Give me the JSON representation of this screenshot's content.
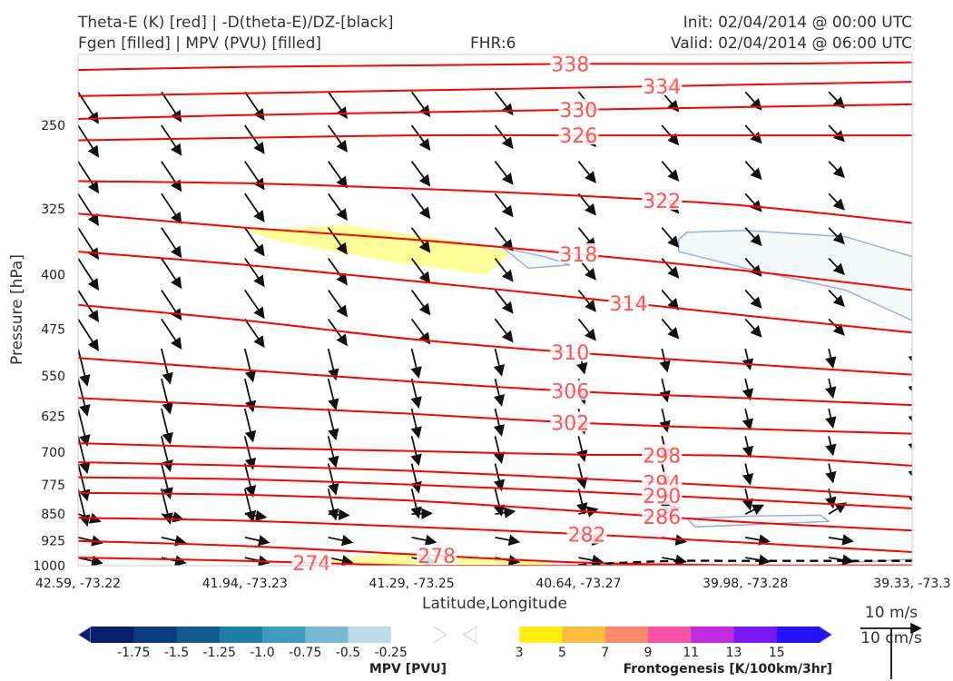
{
  "header": {
    "title_left_1": "Theta-E (K) [red] | -D(theta-E)/DZ-[black]",
    "title_left_2": "Fgen [filled] | MPV (PVU) [filled]",
    "title_center": "FHR:6",
    "title_right_1": "Init: 02/04/2014 @ 00:00 UTC",
    "title_right_2": "Valid: 02/04/2014 @ 06:00 UTC"
  },
  "chart_data": {
    "type": "cross-section",
    "xlabel": "Latitude,Longitude",
    "ylabel": "Pressure [hPa]",
    "x_ticks": [
      "42.59, -73.22",
      "41.94, -73.23",
      "41.29, -73.25",
      "40.64, -73.27",
      "39.98, -73.28",
      "39.33, -73.3"
    ],
    "y_ticks": [
      250,
      325,
      400,
      475,
      550,
      625,
      700,
      775,
      850,
      925,
      1000
    ],
    "ylim": [
      1000,
      200
    ],
    "y_scale": "log",
    "theta_e_contours": {
      "color": "#ff0000",
      "x_points": [
        0,
        1,
        2,
        3,
        4,
        5
      ],
      "lines": [
        {
          "value": 338,
          "label": "338",
          "p": [
            210,
            208,
            207,
            206,
            206,
            205
          ]
        },
        {
          "value": 334,
          "label": "334",
          "p": [
            228,
            226,
            224,
            222,
            220,
            218
          ]
        },
        {
          "value": 330,
          "label": "330",
          "p": [
            245,
            242,
            240,
            238,
            236,
            234
          ]
        },
        {
          "value": 326,
          "label": "326",
          "p": [
            262,
            260,
            258,
            258,
            258,
            258
          ]
        },
        {
          "value": 322,
          "label": "322",
          "p": [
            298,
            300,
            305,
            312,
            322,
            340
          ]
        },
        {
          "value": 318,
          "label": "318",
          "p": [
            330,
            345,
            358,
            375,
            395,
            420
          ]
        },
        {
          "value": 314,
          "label": "314",
          "p": [
            372,
            388,
            408,
            430,
            455,
            480
          ]
        },
        {
          "value": 310,
          "label": "310",
          "p": [
            440,
            462,
            490,
            512,
            530,
            548
          ]
        },
        {
          "value": 306,
          "label": "306",
          "p": [
            520,
            540,
            560,
            578,
            590,
            603
          ]
        },
        {
          "value": 302,
          "label": "302",
          "p": [
            590,
            605,
            620,
            638,
            650,
            660
          ]
        },
        {
          "value": 298,
          "label": "298",
          "p": [
            680,
            690,
            697,
            705,
            708,
            730
          ]
        },
        {
          "value": 294,
          "label": "294",
          "p": [
            722,
            730,
            742,
            760,
            780,
            805
          ]
        },
        {
          "value": 290,
          "label": "290",
          "p": [
            757,
            762,
            775,
            792,
            812,
            835
          ]
        },
        {
          "value": 286,
          "label": "286",
          "p": [
            795,
            800,
            815,
            842,
            872,
            895
          ]
        },
        {
          "value": 282,
          "label": "282",
          "p": [
            860,
            868,
            885,
            905,
            930,
            958
          ]
        },
        {
          "value": 278,
          "label": "278",
          "p": [
            925,
            940,
            965,
            990,
            1000,
            1000
          ]
        },
        {
          "value": 274,
          "label": "274",
          "p": [
            975,
            985,
            1000,
            1000,
            1000,
            1000
          ]
        }
      ]
    },
    "neg_dthetae_dz_contour": {
      "color": "#000000",
      "style": "dashed",
      "x": [
        3.0,
        3.3,
        3.6,
        4.0,
        4.5,
        5.0
      ],
      "p": [
        1000,
        990,
        985,
        985,
        985,
        985
      ]
    },
    "fgen_regions": [
      {
        "color": "#ffff99",
        "x": [
          1.0,
          1.6,
          2.2,
          2.6,
          2.45,
          1.9,
          1.2
        ],
        "p": [
          348,
          342,
          358,
          372,
          400,
          385,
          360
        ]
      },
      {
        "color": "#ffff99",
        "x": [
          1.45,
          1.9,
          2.7,
          2.9,
          2.3,
          1.6
        ],
        "p": [
          985,
          960,
          980,
          1000,
          1000,
          995
        ]
      }
    ],
    "mpv_regions": [
      {
        "color": "#f3f8f9",
        "edge": "#9ab0d6",
        "x": [
          3.6,
          3.65,
          4.0,
          4.6,
          5.0,
          5.0,
          4.6,
          4.0,
          3.6
        ],
        "p": [
          358,
          350,
          348,
          355,
          378,
          462,
          420,
          392,
          372
        ]
      },
      {
        "color": "#f3f8f9",
        "edge": "#9ab0d6",
        "x": [
          3.65,
          4.05,
          4.45,
          4.5,
          3.7
        ],
        "p": [
          862,
          855,
          853,
          870,
          885
        ]
      },
      {
        "color": "#f3f8f9",
        "edge": "#9ab0d6",
        "x": [
          2.55,
          2.8,
          2.95,
          2.7
        ],
        "p": [
          368,
          378,
          388,
          392
        ]
      },
      {
        "color": "#f3f8f9",
        "edge": "#9ab0d6",
        "x": [
          4.6,
          5.0,
          5.0,
          4.55
        ],
        "p": [
          990,
          980,
          1000,
          1000
        ]
      }
    ],
    "barb_scale": {
      "label1": "10 m/s",
      "label2": "10 cm/s"
    }
  },
  "colorbars": {
    "mpv": {
      "title": "MPV [PVU]",
      "colors": [
        "#08206a",
        "#0b3b7e",
        "#105a8f",
        "#1f7ea6",
        "#3f9bc0",
        "#78b9d2",
        "#bcdde8",
        "#ffffff"
      ],
      "labels": [
        "-1.75",
        "-1.5",
        "-1.25",
        "-1.0",
        "-0.75",
        "-0.5",
        "-0.25"
      ]
    },
    "fgen": {
      "title": "Frontogenesis [K/100km/3hr]",
      "colors": [
        "#ffffff",
        "#ffee10",
        "#fdbd3c",
        "#fb8a6a",
        "#f853a4",
        "#c22bde",
        "#7a19f5",
        "#2612f8"
      ],
      "labels": [
        "3",
        "5",
        "7",
        "9",
        "11",
        "13",
        "15"
      ]
    }
  }
}
